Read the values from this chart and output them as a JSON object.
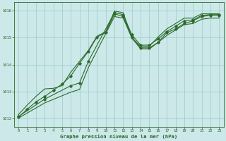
{
  "background_color": "#cce8e8",
  "grid_color": "#99cccc",
  "line_color": "#2d6a2d",
  "xlabel": "Graphe pression niveau de la mer (hPa)",
  "xlim": [
    -0.5,
    23.5
  ],
  "ylim": [
    1011.7,
    1016.3
  ],
  "yticks": [
    1012,
    1013,
    1014,
    1015,
    1016
  ],
  "xticks": [
    0,
    1,
    2,
    3,
    4,
    5,
    6,
    7,
    8,
    9,
    10,
    11,
    12,
    13,
    14,
    15,
    16,
    17,
    18,
    19,
    20,
    21,
    22,
    23
  ],
  "series1_x": [
    0,
    1,
    2,
    3,
    4,
    5,
    6,
    7,
    8,
    9,
    10,
    11,
    12,
    13,
    14,
    15,
    16,
    17,
    18,
    19,
    20,
    21,
    22,
    23
  ],
  "series1_y": [
    1012.05,
    1012.35,
    1012.62,
    1012.82,
    1013.05,
    1013.28,
    1013.58,
    1014.05,
    1014.48,
    1015.02,
    1015.18,
    1015.88,
    1015.78,
    1015.02,
    1014.62,
    1014.62,
    1014.82,
    1015.18,
    1015.32,
    1015.52,
    1015.62,
    1015.78,
    1015.82,
    1015.82
  ],
  "series2_x": [
    0,
    1,
    2,
    3,
    4,
    5,
    6,
    7,
    8,
    9,
    10,
    11,
    12,
    13,
    14,
    15,
    16,
    17,
    18,
    19,
    20,
    21,
    22,
    23
  ],
  "series2_y": [
    1012.15,
    1012.5,
    1012.82,
    1013.1,
    1013.12,
    1013.22,
    1013.72,
    1014.12,
    1014.52,
    1015.05,
    1015.22,
    1015.98,
    1015.92,
    1014.98,
    1014.68,
    1014.68,
    1015.02,
    1015.32,
    1015.52,
    1015.72,
    1015.72,
    1015.88,
    1015.88,
    1015.88
  ],
  "series3_x": [
    0,
    3,
    6,
    7,
    8,
    11,
    12,
    13,
    14,
    15,
    16,
    17,
    18,
    19,
    20,
    21,
    22,
    23
  ],
  "series3_y": [
    1012.08,
    1012.72,
    1013.22,
    1013.32,
    1014.12,
    1015.92,
    1015.85,
    1015.1,
    1014.72,
    1014.72,
    1014.95,
    1015.22,
    1015.42,
    1015.62,
    1015.65,
    1015.82,
    1015.85,
    1015.85
  ],
  "series4_x": [
    0,
    3,
    6,
    7,
    8,
    11,
    12,
    13,
    14,
    15,
    16,
    17,
    18,
    19,
    20,
    21,
    22,
    23
  ],
  "series4_y": [
    1012.02,
    1012.58,
    1012.98,
    1013.08,
    1013.88,
    1015.78,
    1015.72,
    1014.98,
    1014.58,
    1014.58,
    1014.82,
    1015.08,
    1015.28,
    1015.48,
    1015.52,
    1015.68,
    1015.72,
    1015.72
  ],
  "marker_x1": [
    0,
    1,
    2,
    3,
    4,
    5,
    6,
    7,
    8,
    9,
    10,
    11,
    12,
    13,
    14,
    15,
    16,
    17,
    18,
    19,
    20,
    21,
    22,
    23
  ],
  "marker_y1": [
    1012.05,
    1012.35,
    1012.62,
    1012.82,
    1013.05,
    1013.28,
    1013.58,
    1014.05,
    1014.48,
    1015.02,
    1015.18,
    1015.88,
    1015.78,
    1015.02,
    1014.62,
    1014.62,
    1014.82,
    1015.18,
    1015.32,
    1015.52,
    1015.62,
    1015.78,
    1015.82,
    1015.82
  ],
  "marker_x2": [
    0,
    3,
    6,
    7,
    8,
    11,
    12,
    13,
    14,
    15,
    16,
    17,
    18,
    19,
    20,
    21,
    22,
    23
  ],
  "marker_y2": [
    1012.08,
    1012.72,
    1013.22,
    1013.32,
    1014.12,
    1015.92,
    1015.85,
    1015.1,
    1014.72,
    1014.72,
    1014.95,
    1015.22,
    1015.42,
    1015.62,
    1015.65,
    1015.82,
    1015.85,
    1015.85
  ]
}
